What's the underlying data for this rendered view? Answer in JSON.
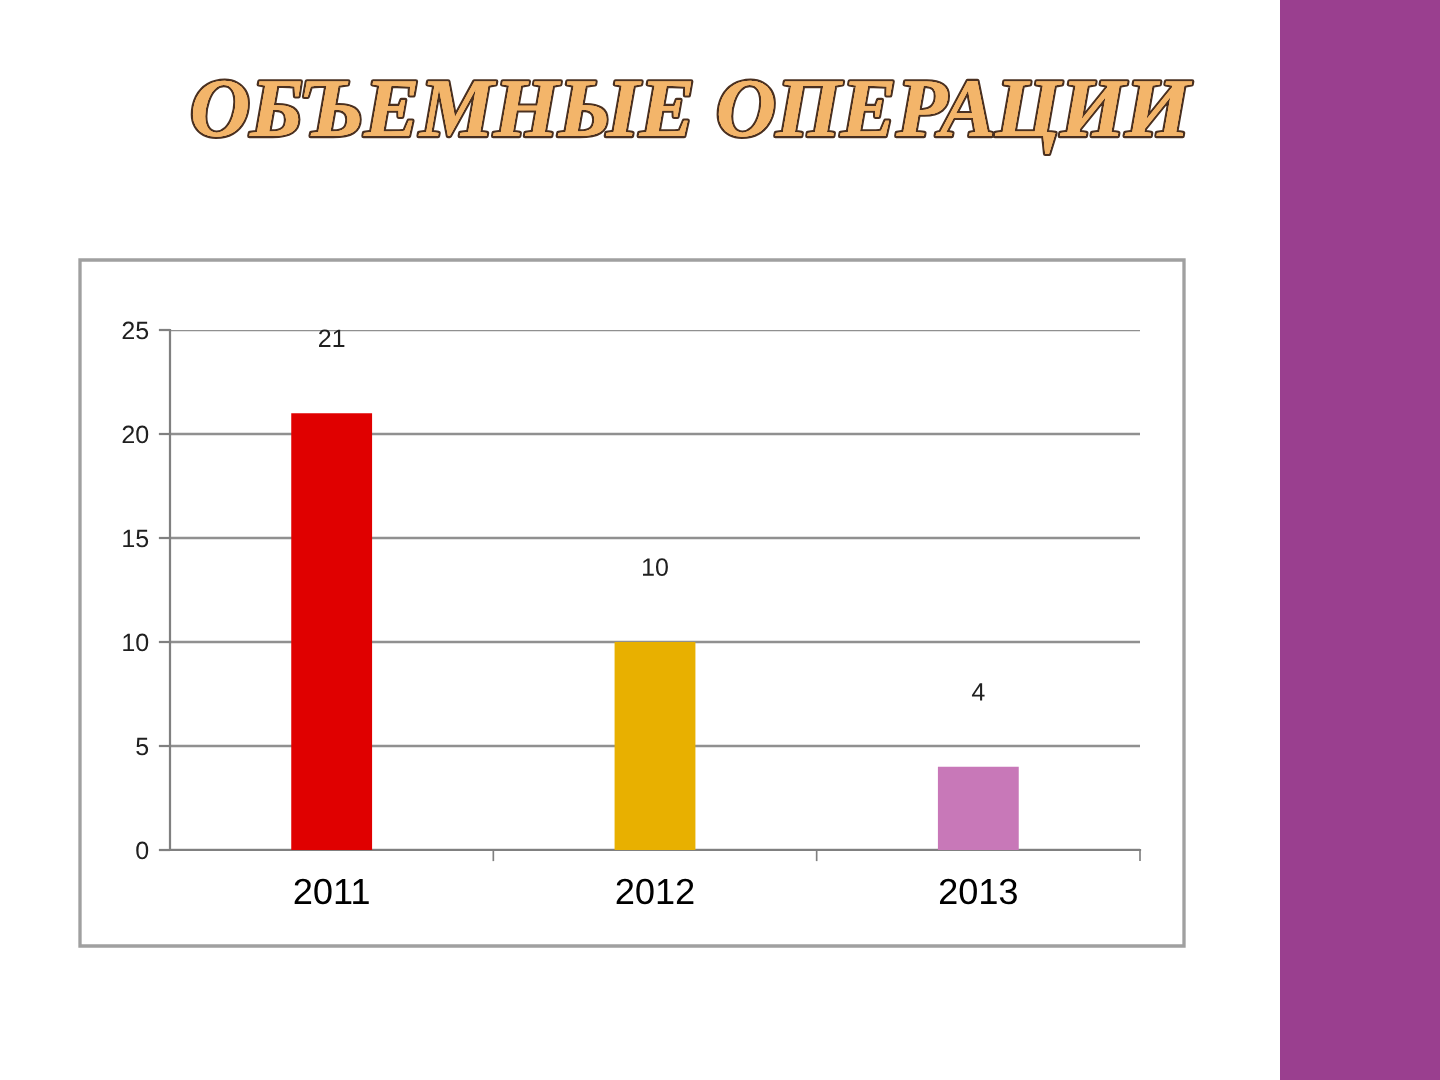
{
  "chart_data": {
    "type": "bar",
    "title": "ОБЪЕМНЫЕ ОПЕРАЦИИ",
    "categories": [
      "2011",
      "2012",
      "2013"
    ],
    "values": [
      21,
      10,
      4
    ],
    "colors": [
      "#e00000",
      "#e8b000",
      "#c878b8"
    ],
    "ylim": [
      0,
      25
    ],
    "yticks": [
      0,
      5,
      10,
      15,
      20,
      25
    ],
    "grid": "y",
    "data_labels": true
  }
}
